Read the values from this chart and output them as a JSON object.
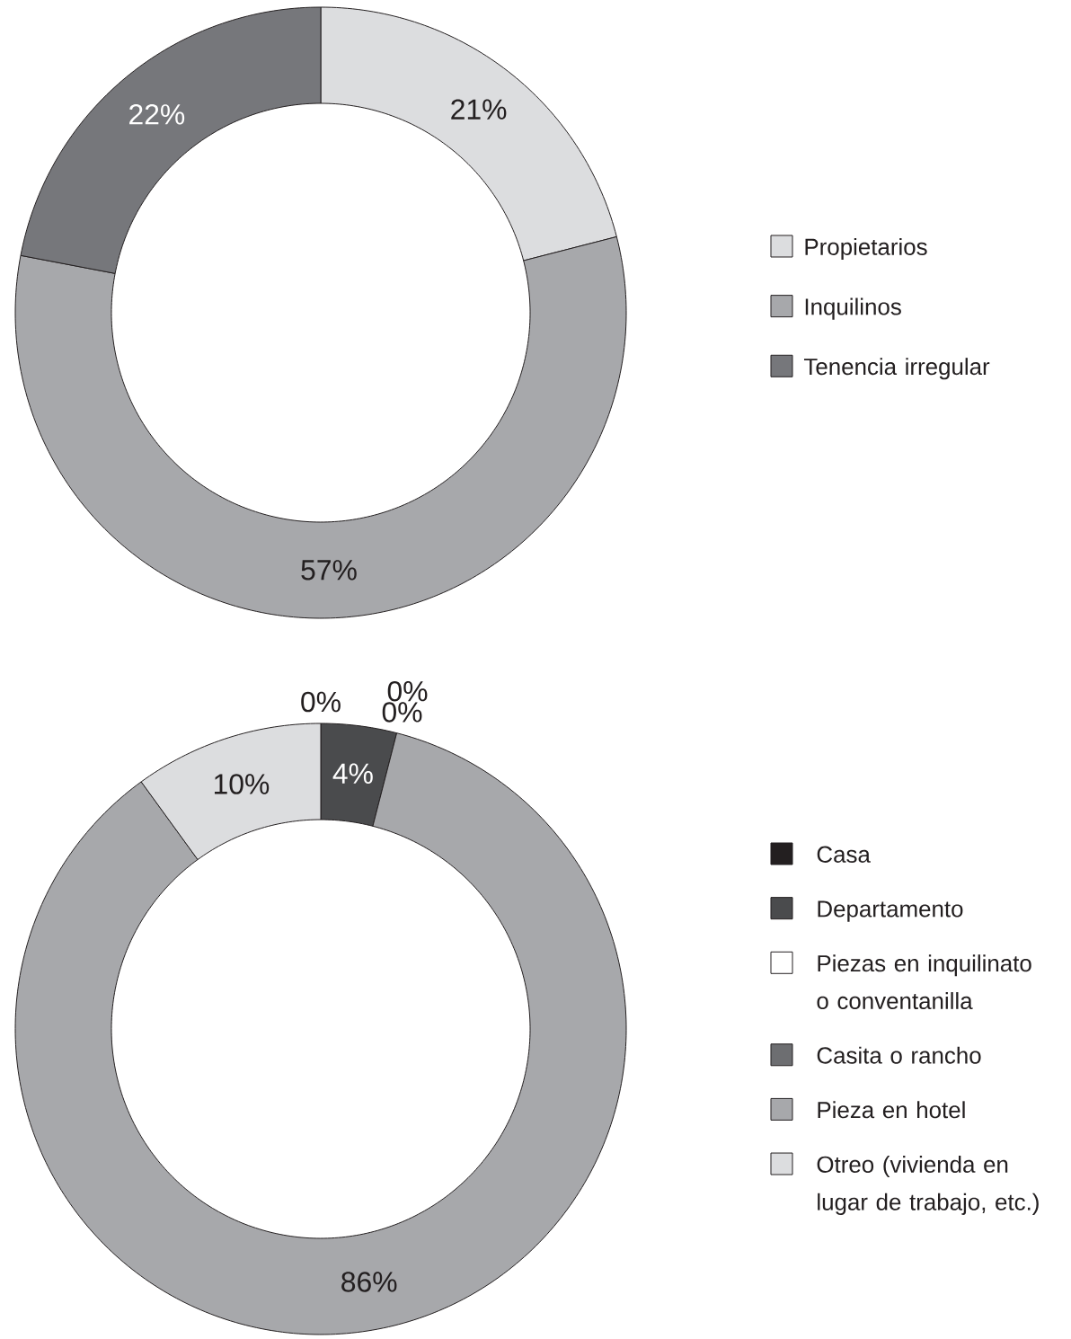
{
  "chart_data": [
    {
      "type": "donut",
      "categories": [
        "Propietarios",
        "Inquilinos",
        "Tenencia irregular"
      ],
      "values": [
        21,
        57,
        22
      ],
      "colors": [
        "#dcdddf",
        "#a7a8ab",
        "#76777b"
      ],
      "value_labels": [
        "21%",
        "57%",
        "22%"
      ],
      "legend": "right"
    },
    {
      "type": "donut",
      "categories": [
        "Casa",
        "Departamento",
        "Piezas en inquilinato o conventanilla",
        "Casita o rancho",
        "Pieza en hotel",
        "Otreo (vivienda en lugar de trabajo, etc.)"
      ],
      "values": [
        0,
        4,
        0,
        0,
        86,
        10
      ],
      "colors": [
        "#231f20",
        "#4a4b4d",
        "#ffffff",
        "#6d6e71",
        "#a7a8ab",
        "#dcdddf"
      ],
      "value_labels": [
        "0%",
        "4%",
        "0%",
        "0%",
        "86%",
        "10%"
      ],
      "legend": "right"
    }
  ]
}
